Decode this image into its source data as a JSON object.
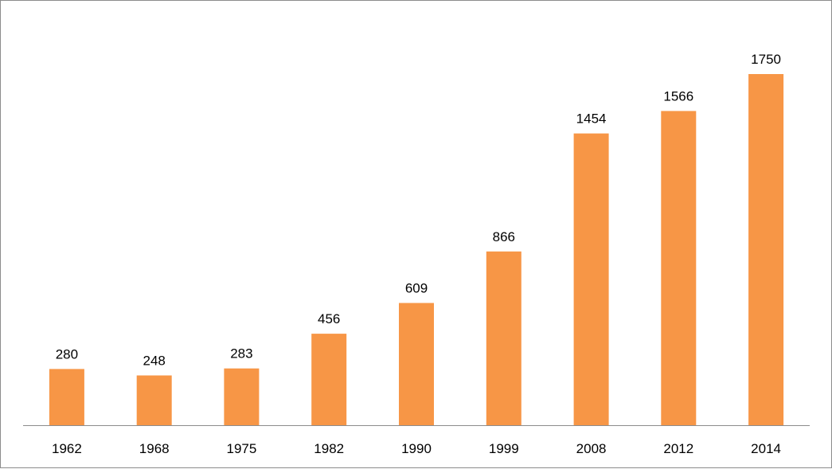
{
  "chart_data": {
    "type": "bar",
    "categories": [
      "1962",
      "1968",
      "1975",
      "1982",
      "1990",
      "1999",
      "2008",
      "2012",
      "2014"
    ],
    "values": [
      280,
      248,
      283,
      456,
      609,
      866,
      1454,
      1566,
      1750
    ],
    "title": "",
    "xlabel": "",
    "ylabel": "",
    "ylim": [
      0,
      1850
    ],
    "grid": false,
    "legend": "none",
    "bar_color": "#F79646",
    "axis_color": "#8c8c8c",
    "data_labels": [
      "280",
      "248",
      "283",
      "456",
      "609",
      "866",
      "1454",
      "1566",
      "1750"
    ]
  }
}
